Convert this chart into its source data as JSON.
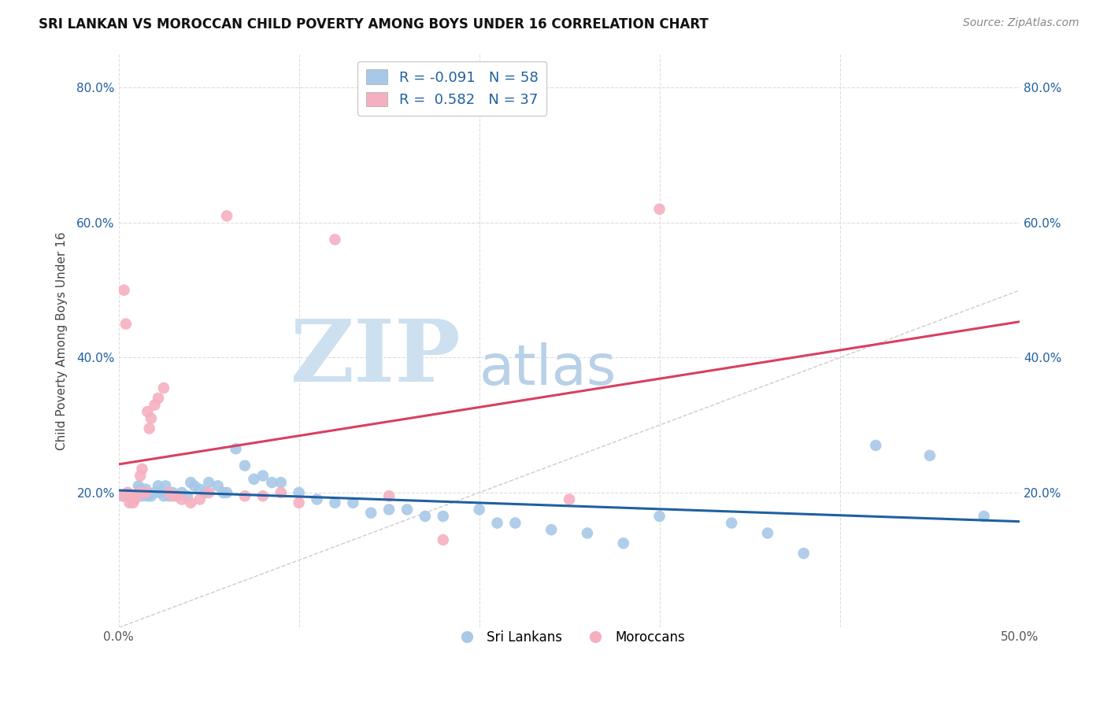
{
  "title": "SRI LANKAN VS MOROCCAN CHILD POVERTY AMONG BOYS UNDER 16 CORRELATION CHART",
  "source": "Source: ZipAtlas.com",
  "ylabel": "Child Poverty Among Boys Under 16",
  "xlim": [
    0.0,
    0.5
  ],
  "ylim": [
    0.0,
    0.85
  ],
  "xticks": [
    0.0,
    0.1,
    0.2,
    0.3,
    0.4,
    0.5
  ],
  "yticks": [
    0.0,
    0.2,
    0.4,
    0.6,
    0.8
  ],
  "xticklabels": [
    "0.0%",
    "",
    "",
    "",
    "",
    "50.0%"
  ],
  "yticklabels_left": [
    "",
    "20.0%",
    "40.0%",
    "60.0%",
    "80.0%"
  ],
  "yticklabels_right": [
    "",
    "20.0%",
    "40.0%",
    "60.0%",
    "80.0%"
  ],
  "sri_lankans_R": "-0.091",
  "sri_lankans_N": "58",
  "moroccans_R": "0.582",
  "moroccans_N": "37",
  "sri_lankans_color": "#a8c8e8",
  "moroccans_color": "#f5b0c0",
  "sri_lankans_line_color": "#2060a0",
  "moroccans_line_color": "#d84060",
  "watermark_zip_color": "#cce0f0",
  "watermark_atlas_color": "#b8d0e8",
  "sri_lankans_x": [
    0.003,
    0.005,
    0.006,
    0.008,
    0.01,
    0.011,
    0.012,
    0.013,
    0.014,
    0.015,
    0.016,
    0.018,
    0.02,
    0.022,
    0.023,
    0.025,
    0.026,
    0.028,
    0.03,
    0.032,
    0.035,
    0.038,
    0.04,
    0.042,
    0.045,
    0.048,
    0.05,
    0.055,
    0.058,
    0.06,
    0.065,
    0.07,
    0.075,
    0.08,
    0.085,
    0.09,
    0.1,
    0.11,
    0.12,
    0.13,
    0.14,
    0.15,
    0.16,
    0.17,
    0.18,
    0.2,
    0.21,
    0.22,
    0.24,
    0.26,
    0.28,
    0.3,
    0.34,
    0.36,
    0.38,
    0.42,
    0.45,
    0.48
  ],
  "sri_lankans_y": [
    0.195,
    0.2,
    0.195,
    0.19,
    0.195,
    0.21,
    0.205,
    0.195,
    0.2,
    0.205,
    0.195,
    0.195,
    0.2,
    0.21,
    0.2,
    0.195,
    0.21,
    0.195,
    0.2,
    0.195,
    0.2,
    0.195,
    0.215,
    0.21,
    0.205,
    0.2,
    0.215,
    0.21,
    0.2,
    0.2,
    0.265,
    0.24,
    0.22,
    0.225,
    0.215,
    0.215,
    0.2,
    0.19,
    0.185,
    0.185,
    0.17,
    0.175,
    0.175,
    0.165,
    0.165,
    0.175,
    0.155,
    0.155,
    0.145,
    0.14,
    0.125,
    0.165,
    0.155,
    0.14,
    0.11,
    0.27,
    0.255,
    0.165
  ],
  "moroccans_x": [
    0.002,
    0.003,
    0.004,
    0.005,
    0.006,
    0.007,
    0.008,
    0.009,
    0.01,
    0.011,
    0.012,
    0.013,
    0.014,
    0.015,
    0.016,
    0.017,
    0.018,
    0.02,
    0.022,
    0.025,
    0.028,
    0.03,
    0.032,
    0.035,
    0.04,
    0.045,
    0.05,
    0.06,
    0.07,
    0.08,
    0.09,
    0.1,
    0.12,
    0.15,
    0.18,
    0.25,
    0.3
  ],
  "moroccans_y": [
    0.195,
    0.5,
    0.45,
    0.2,
    0.185,
    0.195,
    0.185,
    0.19,
    0.195,
    0.2,
    0.225,
    0.235,
    0.2,
    0.2,
    0.32,
    0.295,
    0.31,
    0.33,
    0.34,
    0.355,
    0.2,
    0.195,
    0.195,
    0.19,
    0.185,
    0.19,
    0.2,
    0.61,
    0.195,
    0.195,
    0.2,
    0.185,
    0.575,
    0.195,
    0.13,
    0.19,
    0.62
  ]
}
